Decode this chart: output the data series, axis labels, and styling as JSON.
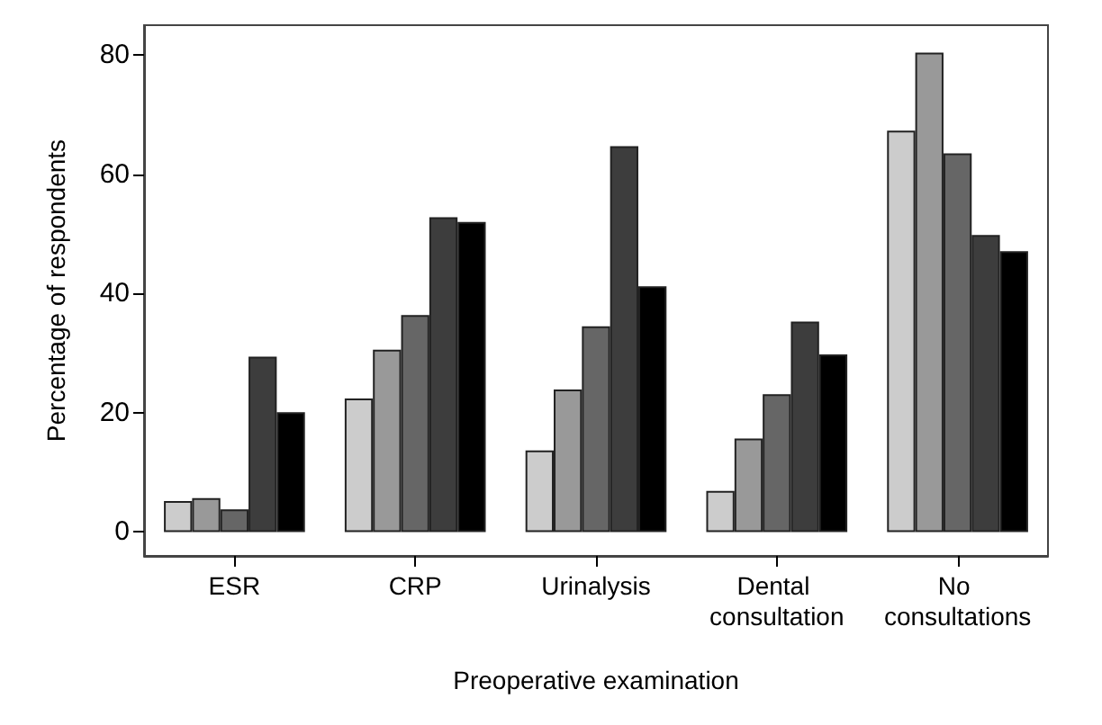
{
  "chart_data": {
    "type": "bar",
    "xlabel": "Preoperative examination",
    "ylabel": "Percentage of respondents",
    "categories": [
      "ESR",
      "CRP",
      "Urinalysis",
      "Dental consultation",
      "No consultations"
    ],
    "series": [
      {
        "color": "#cccccc",
        "values": [
          5.2,
          22.4,
          13.7,
          6.9,
          67.3
        ]
      },
      {
        "color": "#999999",
        "values": [
          5.7,
          30.6,
          23.9,
          15.7,
          80.4
        ]
      },
      {
        "color": "#666666",
        "values": [
          3.8,
          36.4,
          34.5,
          23.1,
          63.5
        ]
      },
      {
        "color": "#3d3d3d",
        "values": [
          29.4,
          52.8,
          64.7,
          35.3,
          49.8
        ]
      },
      {
        "color": "#000000",
        "values": [
          20.1,
          52.0,
          41.2,
          29.8,
          47.1
        ]
      }
    ],
    "ylim": [
      -4,
      85
    ],
    "yticks": [
      0,
      20,
      40,
      60,
      80
    ]
  }
}
